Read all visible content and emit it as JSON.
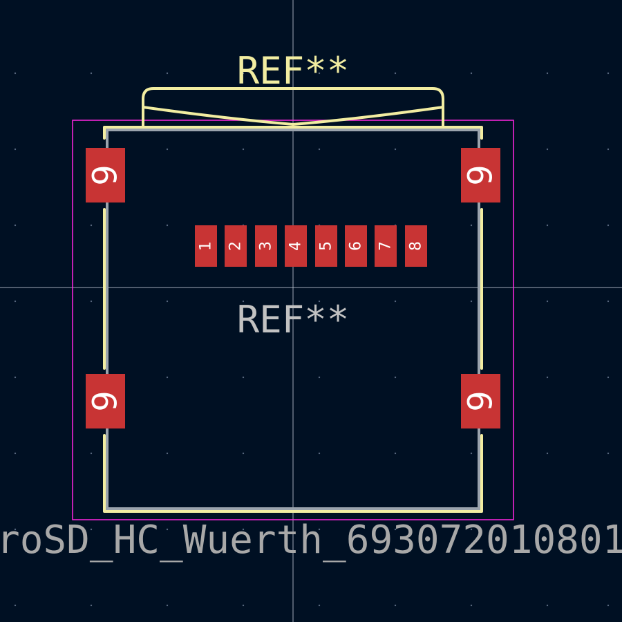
{
  "colors": {
    "background": "#001023",
    "grid_dot": "#5a6a80",
    "crosshair": "#c8d0dc",
    "silkscreen": "#f2eda1",
    "courtyard": "#ff26e2",
    "fab": "#c2c2c2",
    "pad": "#c83434",
    "pad_text": "#ffffff"
  },
  "footprint": {
    "ref_silk": "REF**",
    "ref_fab": "REF**",
    "value": "roSD_HC_Wuerth_693072010801"
  },
  "pads": [
    {
      "id": "pad-1",
      "number": "1"
    },
    {
      "id": "pad-2",
      "number": "2"
    },
    {
      "id": "pad-3",
      "number": "3"
    },
    {
      "id": "pad-4",
      "number": "4"
    },
    {
      "id": "pad-5",
      "number": "5"
    },
    {
      "id": "pad-6",
      "number": "6"
    },
    {
      "id": "pad-7",
      "number": "7"
    },
    {
      "id": "pad-8",
      "number": "8"
    },
    {
      "id": "pad-9-top-left",
      "number": "9"
    },
    {
      "id": "pad-9-top-right",
      "number": "9"
    },
    {
      "id": "pad-9-bottom-left",
      "number": "9"
    },
    {
      "id": "pad-9-bottom-right",
      "number": "9"
    }
  ]
}
